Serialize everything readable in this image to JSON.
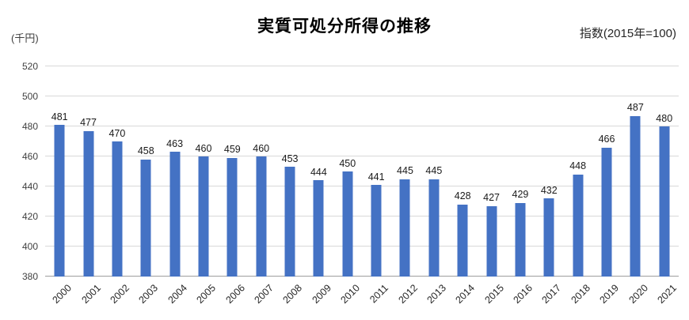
{
  "header": {
    "title": "実質可処分所得の推移",
    "unit_label": "(千円)",
    "index_note": "指数(2015年=100)"
  },
  "chart_data": {
    "type": "bar",
    "title": "実質可処分所得の推移",
    "annotation": "指数(2015年=100)",
    "ylabel": "(千円)",
    "xlabel": "",
    "categories": [
      "2000",
      "2001",
      "2002",
      "2003",
      "2004",
      "2005",
      "2006",
      "2007",
      "2008",
      "2009",
      "2010",
      "2011",
      "2012",
      "2013",
      "2014",
      "2015",
      "2016",
      "2017",
      "2018",
      "2019",
      "2020",
      "2021"
    ],
    "values": [
      481,
      477,
      470,
      458,
      463,
      460,
      459,
      460,
      453,
      444,
      450,
      441,
      445,
      445,
      428,
      427,
      429,
      432,
      448,
      466,
      487,
      480
    ],
    "ylim": [
      380,
      520
    ],
    "yticks": [
      380,
      400,
      420,
      440,
      460,
      480,
      500,
      520
    ],
    "grid": true,
    "legend": "none",
    "bar_color": "#4472C4",
    "data_labels": true,
    "x_label_rotation": -45
  }
}
